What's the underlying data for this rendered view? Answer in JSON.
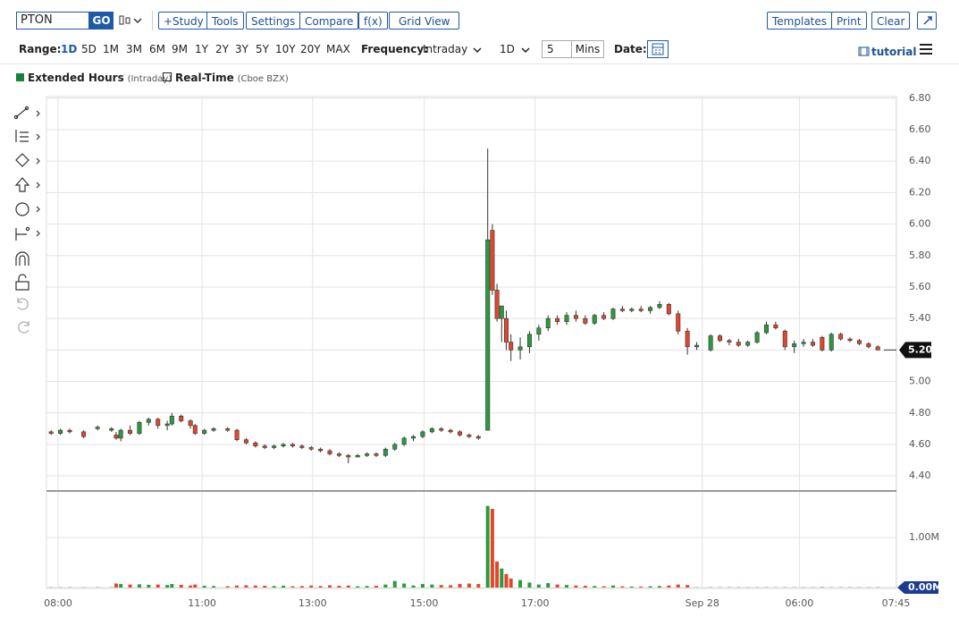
{
  "toolbar": {
    "symbol": "PTON",
    "go": "GO",
    "buttons": [
      "+Study",
      "Tools",
      "Settings",
      "Compare",
      "f(x)",
      "Grid View"
    ],
    "right_buttons": [
      "Templates",
      "Print",
      "Clear"
    ]
  },
  "range_bar": {
    "range_label": "Range:",
    "ranges": [
      "1D",
      "5D",
      "1M",
      "3M",
      "6M",
      "9M",
      "1Y",
      "2Y",
      "3Y",
      "5Y",
      "10Y",
      "20Y",
      "MAX"
    ],
    "frequency_label": "Frequency:",
    "frequency": "Intraday",
    "period": "1D",
    "interval": "5",
    "interval_unit": "Mins",
    "date_label": "Date:",
    "tutorial": "tutorial"
  },
  "legend": {
    "items": [
      {
        "name": "Extended Hours",
        "note": "(Intraday)"
      },
      {
        "name": "Real-Time",
        "note": "(Cboe BZX)"
      }
    ]
  },
  "chart_data": {
    "type": "candlestick",
    "up_color": "#2b9a3e",
    "down_color": "#e1472d",
    "grid": true,
    "x": [
      1,
      3,
      5,
      8,
      11,
      14,
      15,
      16,
      18,
      20,
      22,
      24,
      26,
      27,
      29,
      31,
      32,
      34,
      36,
      39,
      41,
      43,
      45,
      47,
      49,
      51,
      53,
      55,
      57,
      59,
      61,
      63,
      65,
      67,
      69,
      71,
      73,
      75,
      77,
      79,
      81,
      83,
      85,
      87,
      89,
      91,
      93,
      95,
      96,
      97,
      98,
      99,
      100,
      102,
      104,
      106,
      108,
      110,
      112,
      114,
      116,
      118,
      120,
      122,
      124,
      126,
      128,
      130,
      132,
      134,
      136,
      138,
      140,
      143,
      145,
      147,
      149,
      151,
      153,
      155,
      157,
      159,
      161,
      163,
      165,
      167,
      169,
      171,
      173,
      175,
      177,
      179
    ],
    "open": [
      4.68,
      4.67,
      4.69,
      4.68,
      4.7,
      4.69,
      4.66,
      4.64,
      4.69,
      4.67,
      4.74,
      4.76,
      4.72,
      4.73,
      4.78,
      4.75,
      4.72,
      4.67,
      4.69,
      4.7,
      4.69,
      4.63,
      4.61,
      4.59,
      4.58,
      4.59,
      4.6,
      4.59,
      4.58,
      4.57,
      4.56,
      4.54,
      4.53,
      4.52,
      4.53,
      4.54,
      4.53,
      4.57,
      4.6,
      4.64,
      4.65,
      4.68,
      4.7,
      4.69,
      4.68,
      4.66,
      4.65,
      4.69,
      5.96,
      5.58,
      5.4,
      5.4,
      5.25,
      5.2,
      5.22,
      5.3,
      5.34,
      5.4,
      5.38,
      5.42,
      5.4,
      5.37,
      5.42,
      5.4,
      5.46,
      5.45,
      5.46,
      5.45,
      5.47,
      5.49,
      5.43,
      5.32,
      5.22,
      5.2,
      5.29,
      5.26,
      5.25,
      5.23,
      5.25,
      5.31,
      5.36,
      5.32,
      5.22,
      5.24,
      5.25,
      5.28,
      5.2,
      5.3,
      5.27,
      5.26,
      5.24,
      5.22
    ],
    "high": [
      4.69,
      4.7,
      4.7,
      4.69,
      4.72,
      4.71,
      4.68,
      4.7,
      4.72,
      4.75,
      4.77,
      4.77,
      4.75,
      4.8,
      4.79,
      4.76,
      4.73,
      4.7,
      4.71,
      4.71,
      4.7,
      4.64,
      4.62,
      4.6,
      4.6,
      4.61,
      4.61,
      4.6,
      4.59,
      4.58,
      4.57,
      4.55,
      4.54,
      4.54,
      4.55,
      4.55,
      4.58,
      4.61,
      4.65,
      4.66,
      4.69,
      4.71,
      4.71,
      4.7,
      4.69,
      4.67,
      4.66,
      6.48,
      6.0,
      5.62,
      5.48,
      5.45,
      5.3,
      5.28,
      5.32,
      5.36,
      5.42,
      5.42,
      5.44,
      5.45,
      5.42,
      5.43,
      5.44,
      5.47,
      5.48,
      5.47,
      5.48,
      5.48,
      5.51,
      5.5,
      5.45,
      5.34,
      5.25,
      5.3,
      5.3,
      5.27,
      5.27,
      5.26,
      5.32,
      5.38,
      5.38,
      5.33,
      5.26,
      5.27,
      5.27,
      5.29,
      5.31,
      5.31,
      5.28,
      5.27,
      5.25,
      5.23
    ],
    "low": [
      4.66,
      4.66,
      4.67,
      4.64,
      4.69,
      4.68,
      4.63,
      4.62,
      4.66,
      4.66,
      4.72,
      4.7,
      4.69,
      4.72,
      4.74,
      4.7,
      4.66,
      4.66,
      4.68,
      4.68,
      4.62,
      4.6,
      4.58,
      4.57,
      4.57,
      4.58,
      4.58,
      4.57,
      4.56,
      4.55,
      4.53,
      4.52,
      4.48,
      4.52,
      4.52,
      4.52,
      4.52,
      4.56,
      4.59,
      4.62,
      4.64,
      4.67,
      4.68,
      4.67,
      4.65,
      4.64,
      4.63,
      4.69,
      5.55,
      5.38,
      5.25,
      5.2,
      5.13,
      5.14,
      5.18,
      5.26,
      5.32,
      5.36,
      5.36,
      5.38,
      5.36,
      5.36,
      5.39,
      5.39,
      5.44,
      5.44,
      5.44,
      5.43,
      5.46,
      5.42,
      5.3,
      5.17,
      5.2,
      5.19,
      5.25,
      5.23,
      5.22,
      5.22,
      5.24,
      5.3,
      5.33,
      5.2,
      5.18,
      5.22,
      5.22,
      5.19,
      5.19,
      5.26,
      5.25,
      5.23,
      5.21,
      5.2
    ],
    "close": [
      4.67,
      4.69,
      4.68,
      4.65,
      4.71,
      4.7,
      4.64,
      4.69,
      4.67,
      4.74,
      4.76,
      4.72,
      4.73,
      4.78,
      4.75,
      4.72,
      4.67,
      4.69,
      4.7,
      4.69,
      4.63,
      4.61,
      4.59,
      4.58,
      4.59,
      4.6,
      4.59,
      4.58,
      4.57,
      4.56,
      4.54,
      4.53,
      4.52,
      4.53,
      4.54,
      4.53,
      4.57,
      4.6,
      4.64,
      4.65,
      4.68,
      4.7,
      4.69,
      4.68,
      4.66,
      4.65,
      4.64,
      5.9,
      5.58,
      5.4,
      5.48,
      5.25,
      5.2,
      5.22,
      5.3,
      5.34,
      5.4,
      5.38,
      5.42,
      5.4,
      5.37,
      5.42,
      5.4,
      5.46,
      5.45,
      5.46,
      5.45,
      5.47,
      5.49,
      5.43,
      5.32,
      5.22,
      5.23,
      5.29,
      5.26,
      5.25,
      5.23,
      5.25,
      5.31,
      5.36,
      5.34,
      5.22,
      5.24,
      5.25,
      5.23,
      5.2,
      5.3,
      5.27,
      5.26,
      5.24,
      5.22,
      5.2
    ],
    "volume": [
      0.005,
      0.005,
      0.005,
      0.005,
      0.005,
      0.005,
      0.08,
      0.07,
      0.06,
      0.065,
      0.055,
      0.06,
      0.05,
      0.07,
      0.055,
      0.04,
      0.06,
      0.035,
      0.03,
      0.025,
      0.04,
      0.045,
      0.04,
      0.035,
      0.03,
      0.035,
      0.025,
      0.03,
      0.04,
      0.03,
      0.045,
      0.035,
      0.04,
      0.025,
      0.03,
      0.035,
      0.06,
      0.13,
      0.08,
      0.04,
      0.07,
      0.06,
      0.05,
      0.045,
      0.07,
      0.08,
      0.07,
      1.63,
      1.57,
      0.52,
      0.38,
      0.27,
      0.18,
      0.15,
      0.1,
      0.06,
      0.09,
      0.06,
      0.05,
      0.04,
      0.035,
      0.03,
      0.025,
      0.04,
      0.025,
      0.02,
      0.02,
      0.025,
      0.03,
      0.04,
      0.06,
      0.05,
      0.005,
      0.005,
      0.005,
      0.005,
      0.005,
      0.005,
      0.005,
      0.005,
      0.005,
      0.005,
      0.005,
      0.005,
      0.005,
      0.01,
      0.005,
      0.005,
      0.005,
      0.005,
      0.005,
      0.005
    ],
    "xlim": [
      0,
      183
    ],
    "xticks": [
      {
        "value": 2.5,
        "label": "08:00"
      },
      {
        "value": 33.5,
        "label": "11:00"
      },
      {
        "value": 57.3,
        "label": "13:00"
      },
      {
        "value": 81.3,
        "label": "15:00"
      },
      {
        "value": 105.2,
        "label": "17:00"
      },
      {
        "value": 141.2,
        "label": "Sep 28"
      },
      {
        "value": 162.1,
        "label": "06:00"
      },
      {
        "value": 182.9,
        "label": "07:45"
      }
    ],
    "ylim": [
      4.31,
      6.81
    ],
    "yticks": [
      {
        "value": 4.4,
        "label": "4.40"
      },
      {
        "value": 4.6,
        "label": "4.60"
      },
      {
        "value": 4.8,
        "label": "4.80"
      },
      {
        "value": 5,
        "label": "5.00"
      },
      {
        "value": 5.2,
        "label": "5.20"
      },
      {
        "value": 5.4,
        "label": "5.40"
      },
      {
        "value": 5.6,
        "label": "5.60"
      },
      {
        "value": 5.8,
        "label": "5.80"
      },
      {
        "value": 6,
        "label": "6.00"
      },
      {
        "value": 6.2,
        "label": "6.20"
      },
      {
        "value": 6.4,
        "label": "6.40"
      },
      {
        "value": 6.6,
        "label": "6.60"
      },
      {
        "value": 6.8,
        "label": "6.80"
      }
    ],
    "volume_ylim": [
      0,
      1.91
    ],
    "volume_yticks": [
      {
        "value": 0,
        "label": "0.00M"
      },
      {
        "value": 1,
        "label": "1.00M"
      }
    ],
    "last_price": {
      "value": 5.2,
      "label": "5.20"
    }
  }
}
